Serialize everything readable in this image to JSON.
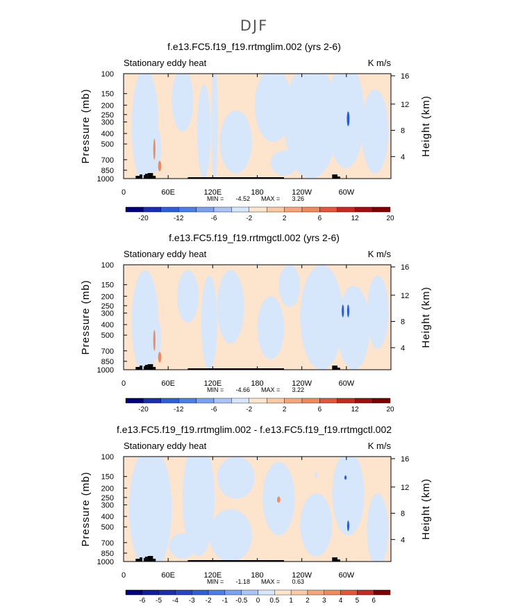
{
  "figure_title": "DJF",
  "colors": {
    "dark_blue": "#00007f",
    "blue": "#2a5bd7",
    "light_blue": "#d6e6fb",
    "neutral_warm": "#fde4cc",
    "orange": "#f08a5b",
    "dark_red": "#7f0000",
    "topography": "#000000"
  },
  "chart_data": [
    {
      "type": "heatmap",
      "title": "f.e13.FC5.f19_f19.rrtmglim.002 (yrs 2-6)",
      "left_label": "Stationary eddy heat",
      "right_label": "K m/s",
      "ylabel": "Pressure (mb)",
      "ylabel_right": "Height (km)",
      "y_ticks": [
        "100",
        "150",
        "200",
        "250",
        "300",
        "400",
        "500",
        "700",
        "850",
        "1000"
      ],
      "y_right_ticks": [
        "16",
        "12",
        "8",
        "4"
      ],
      "x_ticks": [
        "0",
        "60E",
        "120E",
        "180",
        "120W",
        "60W"
      ],
      "stats": {
        "min_label": "MIN =",
        "min": "-4.52",
        "max_label": "MAX =",
        "max": "3.26"
      },
      "colorbar_labels": [
        "-20",
        "-12",
        "-6",
        "-2",
        "2",
        "6",
        "12",
        "20"
      ],
      "colorbar_colors": [
        "#00007f",
        "#1a2fb0",
        "#2f5fd8",
        "#4c7ee8",
        "#7aa2f0",
        "#a9c4f5",
        "#d6e6fb",
        "#fde4cc",
        "#fbc9a3",
        "#f7a57b",
        "#f08a5b",
        "#e2573a",
        "#c42a22",
        "#9f0e11",
        "#7f0000"
      ]
    },
    {
      "type": "heatmap",
      "title": "f.e13.FC5.f19_f19.rrtmgctl.002 (yrs 2-6)",
      "left_label": "Stationary eddy heat",
      "right_label": "K m/s",
      "ylabel": "Pressure (mb)",
      "ylabel_right": "Height (km)",
      "y_ticks": [
        "100",
        "150",
        "200",
        "250",
        "300",
        "400",
        "500",
        "700",
        "850",
        "1000"
      ],
      "y_right_ticks": [
        "16",
        "12",
        "8",
        "4"
      ],
      "x_ticks": [
        "0",
        "60E",
        "120E",
        "180",
        "120W",
        "60W"
      ],
      "stats": {
        "min_label": "MIN =",
        "min": "-4.66",
        "max_label": "MAX =",
        "max": "3.22"
      },
      "colorbar_labels": [
        "-20",
        "-12",
        "-6",
        "-2",
        "2",
        "6",
        "12",
        "20"
      ],
      "colorbar_colors": [
        "#00007f",
        "#1a2fb0",
        "#2f5fd8",
        "#4c7ee8",
        "#7aa2f0",
        "#a9c4f5",
        "#d6e6fb",
        "#fde4cc",
        "#fbc9a3",
        "#f7a57b",
        "#f08a5b",
        "#e2573a",
        "#c42a22",
        "#9f0e11",
        "#7f0000"
      ]
    },
    {
      "type": "heatmap",
      "title": "f.e13.FC5.f19_f19.rrtmglim.002 - f.e13.FC5.f19_f19.rrtmgctl.002",
      "left_label": "Stationary eddy heat",
      "right_label": "K m/s",
      "ylabel": "Pressure (mb)",
      "ylabel_right": "Height (km)",
      "y_ticks": [
        "100",
        "150",
        "200",
        "250",
        "300",
        "400",
        "500",
        "700",
        "850",
        "1000"
      ],
      "y_right_ticks": [
        "16",
        "12",
        "8",
        "4"
      ],
      "x_ticks": [
        "0",
        "60E",
        "120E",
        "180",
        "120W",
        "60W"
      ],
      "stats": {
        "min_label": "MIN =",
        "min": "-1.18",
        "max_label": "MAX =",
        "max": "0.63"
      },
      "colorbar_labels": [
        "-6",
        "-5",
        "-4",
        "-3",
        "-2",
        "-1",
        "-0.5",
        "0",
        "0.5",
        "1",
        "2",
        "3",
        "4",
        "5",
        "6"
      ],
      "colorbar_colors": [
        "#00007f",
        "#0f1e9c",
        "#1a2fb0",
        "#2446c4",
        "#2f5fd8",
        "#4c7ee8",
        "#7aa2f0",
        "#a9c4f5",
        "#d6e6fb",
        "#fde4cc",
        "#fbc9a3",
        "#f7a57b",
        "#f08a5b",
        "#e2573a",
        "#c42a22",
        "#7f0000"
      ]
    }
  ]
}
